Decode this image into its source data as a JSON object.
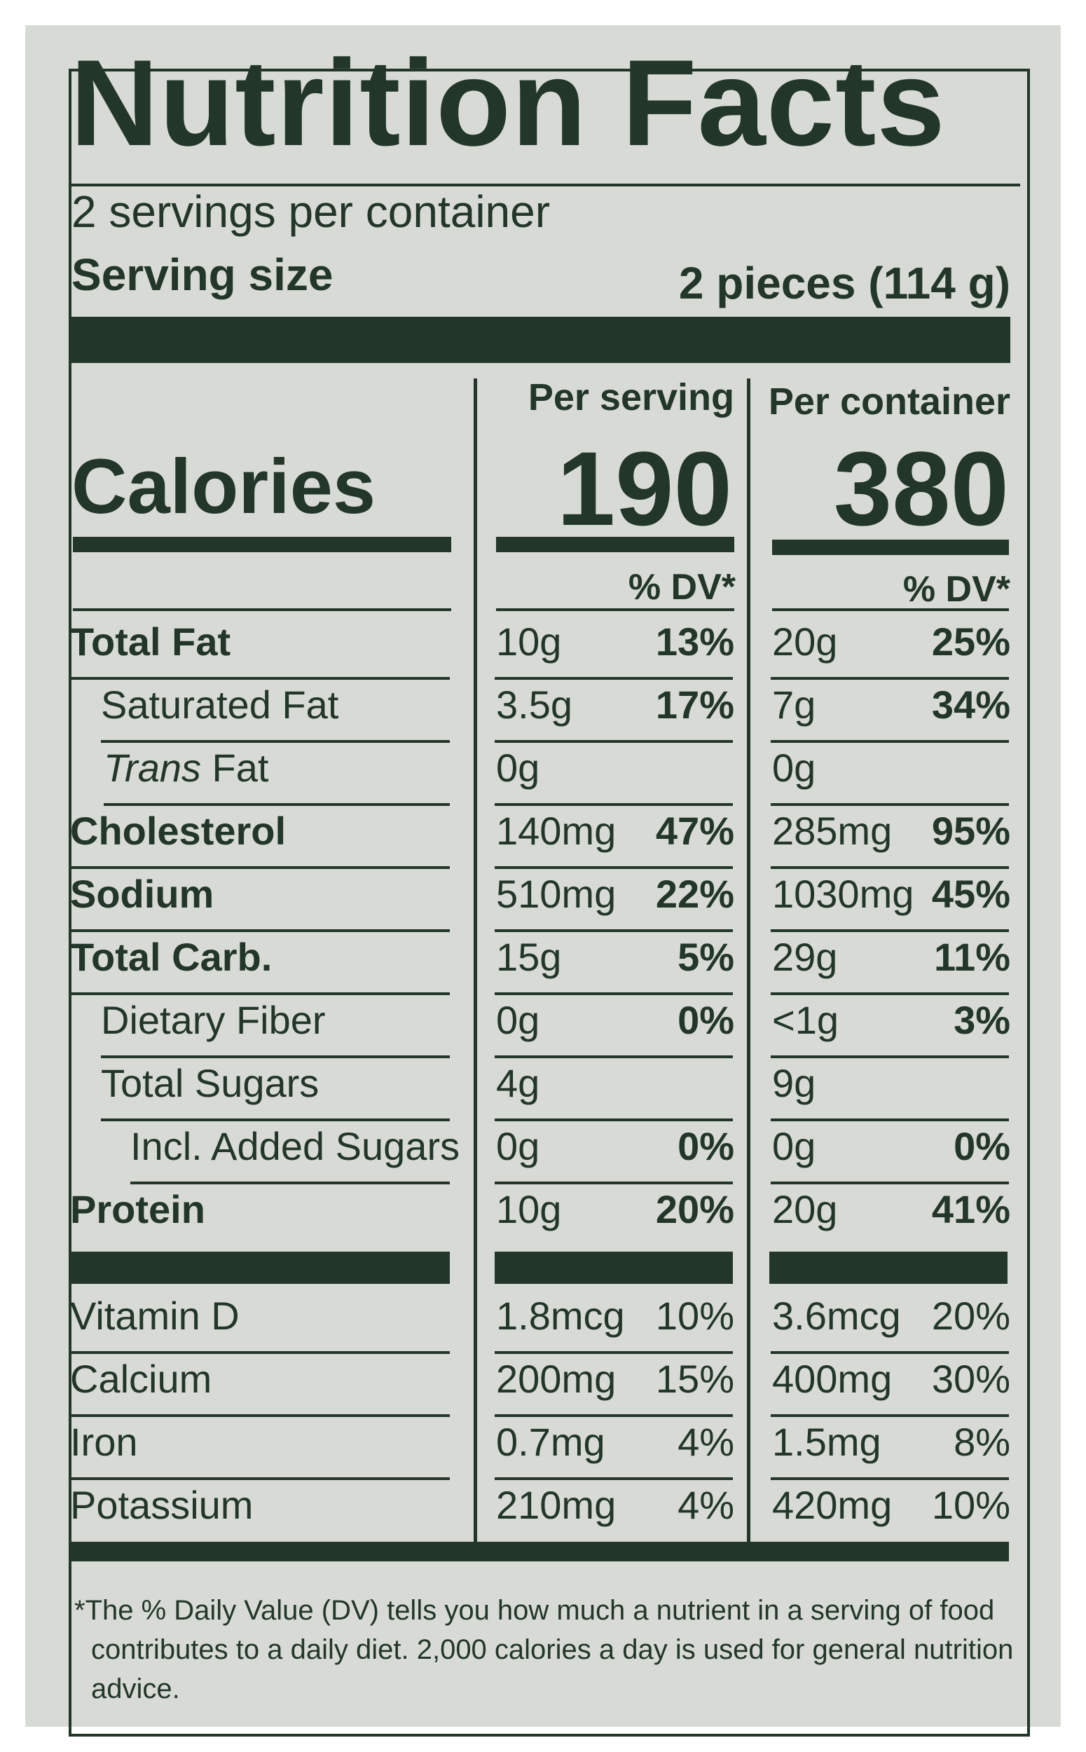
{
  "title": "Nutrition Facts",
  "servings_per_container": "2 servings per container",
  "serving_size_label": "Serving size",
  "serving_size_value": "2 pieces (114 g)",
  "columns": {
    "per_serving": "Per serving",
    "per_container": "Per container"
  },
  "calories": {
    "label": "Calories",
    "per_serving": "190",
    "per_container": "380"
  },
  "dv_header": "% DV*",
  "nutrients": [
    {
      "name": "Total Fat",
      "serv_amt": "10g",
      "serv_dv": "13%",
      "cont_amt": "20g",
      "cont_dv": "25%"
    },
    {
      "name": "Saturated Fat",
      "serv_amt": "3.5g",
      "serv_dv": "17%",
      "cont_amt": "7g",
      "cont_dv": "34%"
    },
    {
      "name_italic": "Trans",
      "name": " Fat",
      "serv_amt": "0g",
      "serv_dv": "",
      "cont_amt": "0g",
      "cont_dv": ""
    },
    {
      "name": "Cholesterol",
      "serv_amt": "140mg",
      "serv_dv": "47%",
      "cont_amt": "285mg",
      "cont_dv": "95%"
    },
    {
      "name": "Sodium",
      "serv_amt": "510mg",
      "serv_dv": "22%",
      "cont_amt": "1030mg",
      "cont_dv": "45%"
    },
    {
      "name": "Total Carb.",
      "serv_amt": "15g",
      "serv_dv": "5%",
      "cont_amt": "29g",
      "cont_dv": "11%"
    },
    {
      "name": "Dietary Fiber",
      "serv_amt": "0g",
      "serv_dv": "0%",
      "cont_amt": "<1g",
      "cont_dv": "3%"
    },
    {
      "name": "Total Sugars",
      "serv_amt": "4g",
      "serv_dv": "",
      "cont_amt": "9g",
      "cont_dv": ""
    },
    {
      "name": "Incl. Added Sugars",
      "serv_amt": "0g",
      "serv_dv": "0%",
      "cont_amt": "0g",
      "cont_dv": "0%"
    },
    {
      "name": "Protein",
      "serv_amt": "10g",
      "serv_dv": "20%",
      "cont_amt": "20g",
      "cont_dv": "41%"
    }
  ],
  "vitamins": [
    {
      "name": "Vitamin D",
      "serv_amt": "1.8mcg",
      "serv_dv": "10%",
      "cont_amt": "3.6mcg",
      "cont_dv": "20%"
    },
    {
      "name": "Calcium",
      "serv_amt": "200mg",
      "serv_dv": "15%",
      "cont_amt": "400mg",
      "cont_dv": "30%"
    },
    {
      "name": "Iron",
      "serv_amt": "0.7mg",
      "serv_dv": "4%",
      "cont_amt": "1.5mg",
      "cont_dv": "8%"
    },
    {
      "name": "Potassium",
      "serv_amt": "210mg",
      "serv_dv": "4%",
      "cont_amt": "420mg",
      "cont_dv": "10%"
    }
  ],
  "footnote": {
    "line1": "*The % Daily Value (DV) tells you how much a nutrient in a serving of food",
    "line2": "contributes to a daily diet. 2,000 calories a day is used for general nutrition",
    "line3": "advice."
  },
  "colors": {
    "ink": "#23362a",
    "background": "#d8dbd5"
  }
}
